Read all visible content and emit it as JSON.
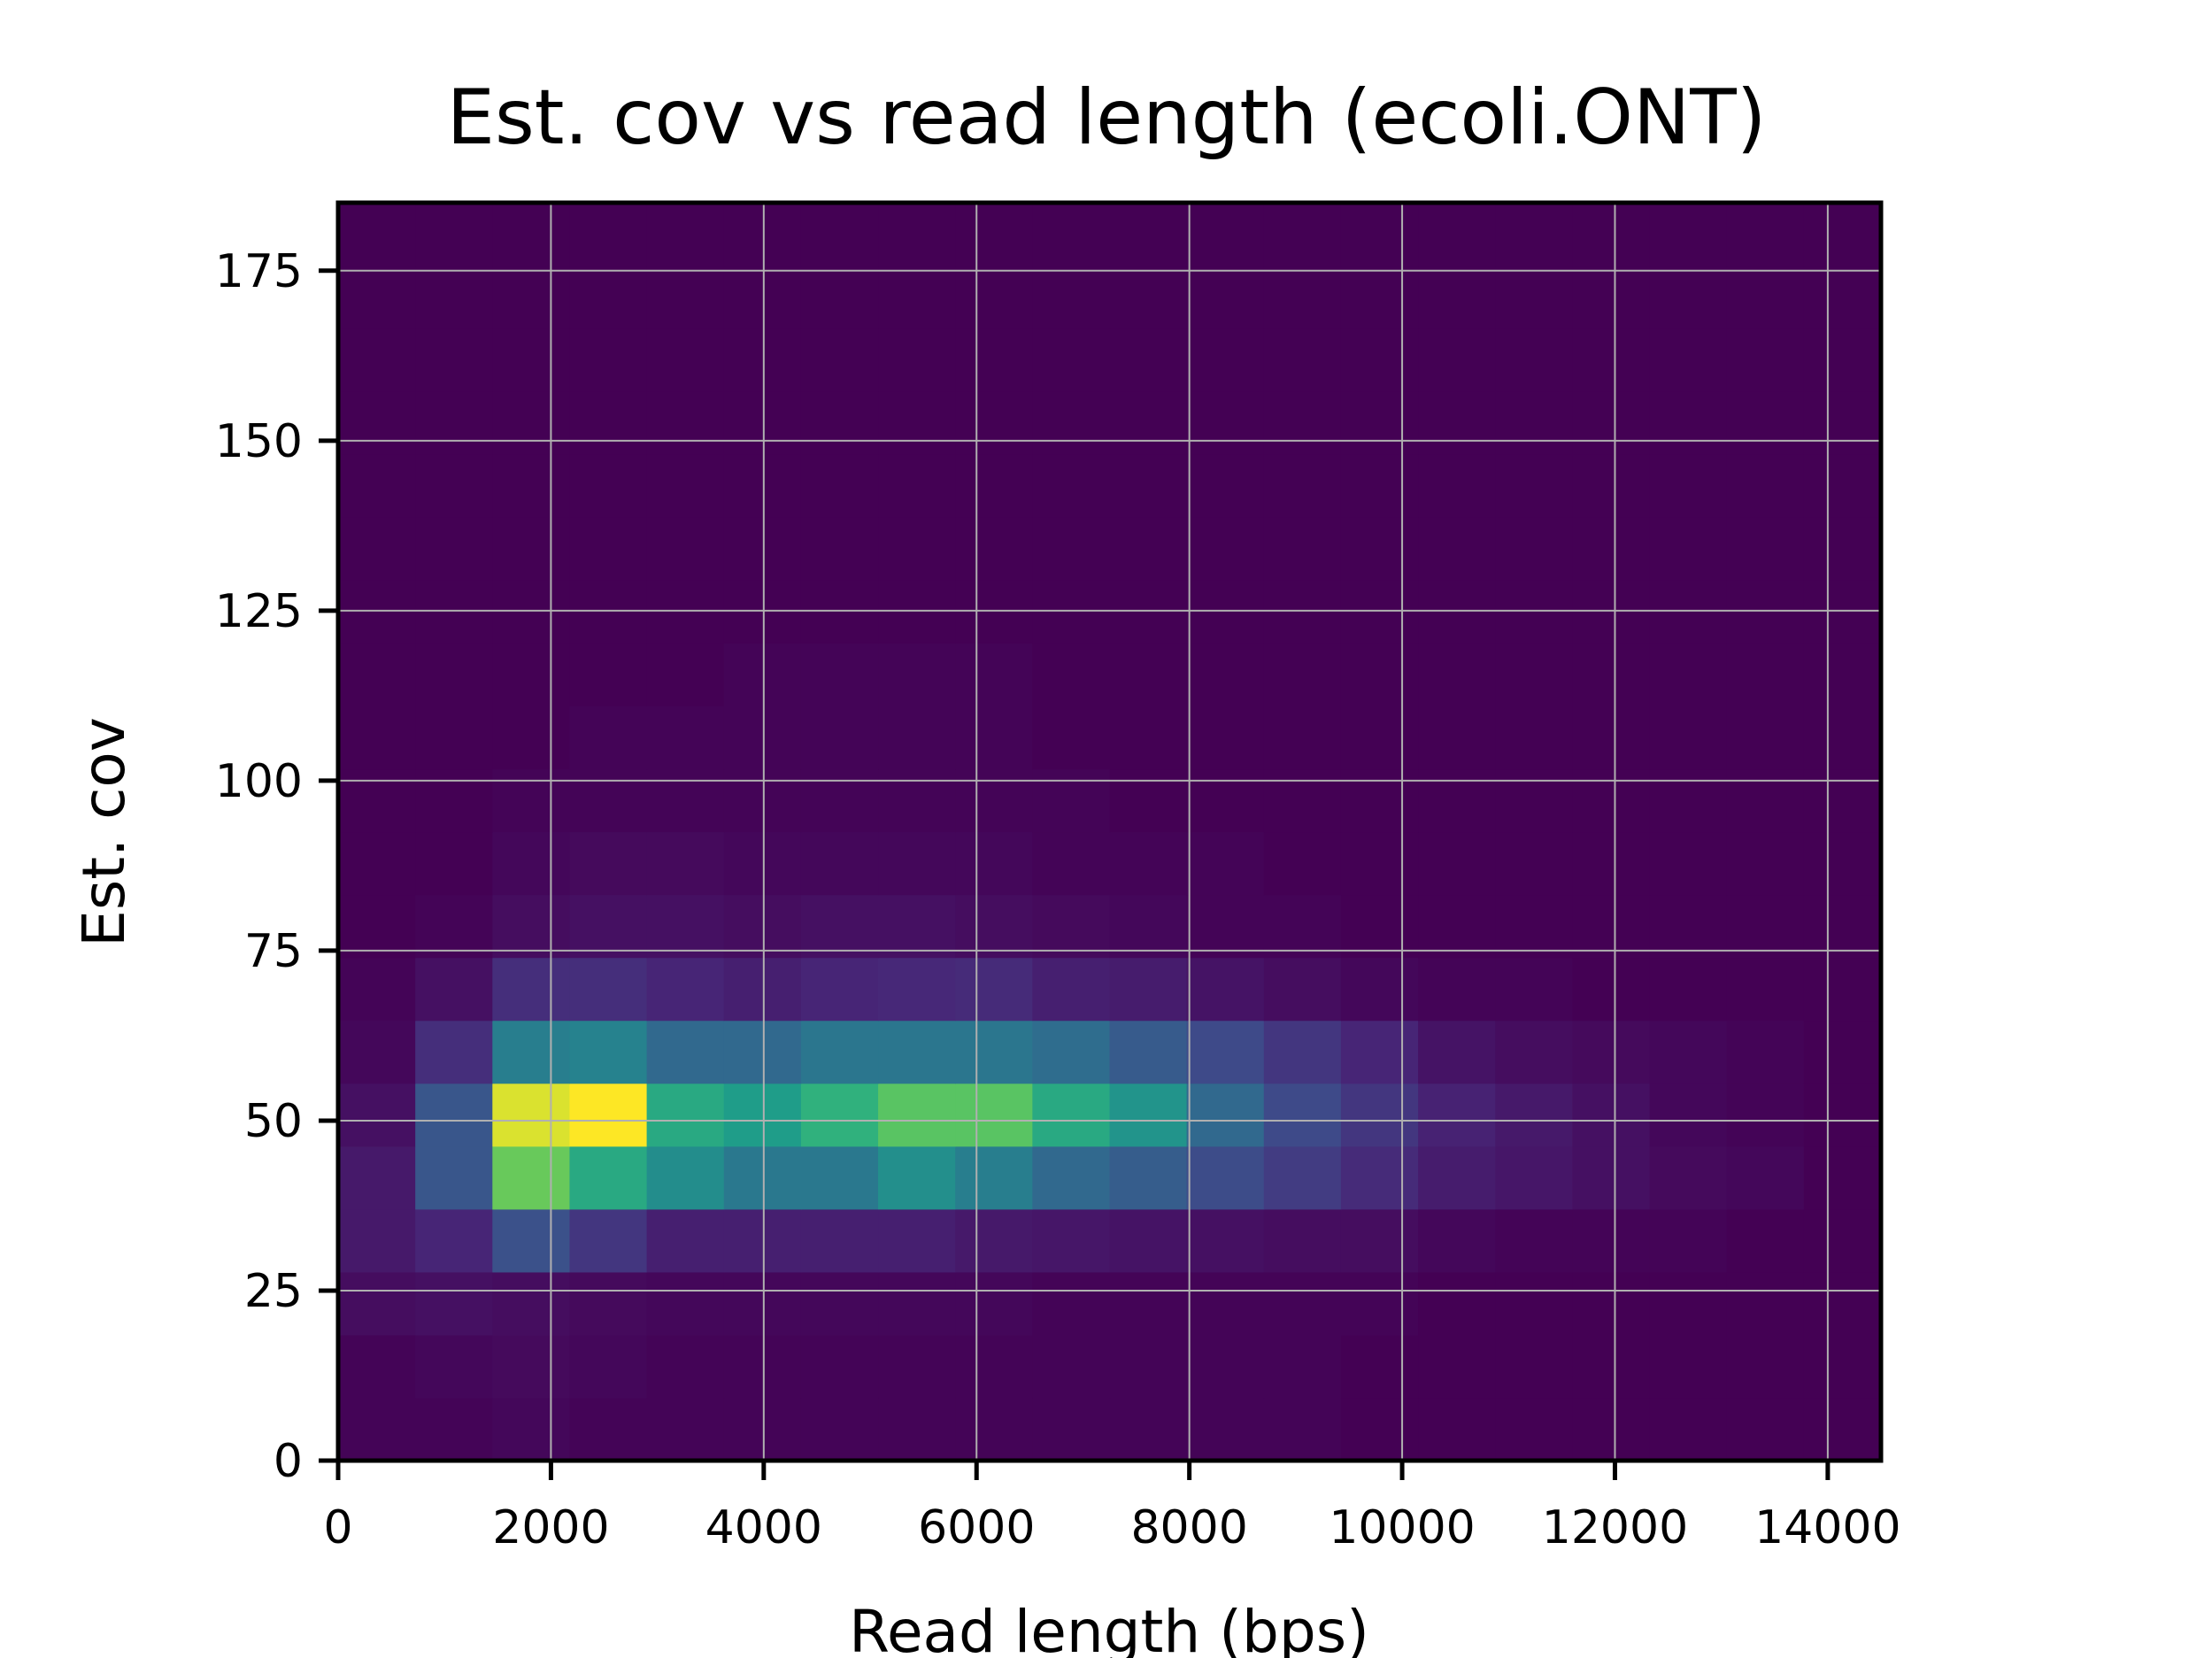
{
  "chart_data": {
    "type": "heatmap",
    "title": "Est. cov vs read length (ecoli.ONT)",
    "xlabel": "Read length (bps)",
    "ylabel": "Est. cov",
    "xlim": [
      0,
      14500
    ],
    "ylim": [
      0,
      185
    ],
    "x_ticks": [
      0,
      2000,
      4000,
      6000,
      8000,
      10000,
      12000,
      14000
    ],
    "x_tick_labels": [
      "0",
      "2000",
      "4000",
      "6000",
      "8000",
      "10000",
      "12000",
      "14000"
    ],
    "y_ticks": [
      0,
      25,
      50,
      75,
      100,
      125,
      150,
      175
    ],
    "y_tick_labels": [
      "0",
      "25",
      "50",
      "75",
      "100",
      "125",
      "150",
      "175"
    ],
    "grid": true,
    "colormap": "viridis",
    "x_bin_edges": [
      0,
      725,
      1450,
      2175,
      2900,
      3625,
      4350,
      5075,
      5800,
      6525,
      7250,
      7975,
      8700,
      9425,
      10150,
      10875,
      11600,
      12325,
      13050,
      13775,
      14500
    ],
    "y_bin_edges": [
      0,
      9.25,
      18.5,
      27.75,
      37,
      46.25,
      55.5,
      64.75,
      74,
      83.25,
      92.5,
      101.75,
      111,
      120.25,
      129.5,
      138.75,
      148,
      157.25,
      166.5,
      175.75,
      185
    ],
    "values": [
      [
        0.01,
        0.01,
        0.02,
        0.01,
        0.01,
        0.01,
        0.01,
        0.01,
        0.01,
        0.01,
        0.01,
        0.01,
        0.01,
        0.0,
        0.0,
        0.0,
        0.0,
        0.0,
        0.0,
        0.0
      ],
      [
        0.01,
        0.02,
        0.03,
        0.02,
        0.01,
        0.01,
        0.01,
        0.01,
        0.01,
        0.01,
        0.01,
        0.01,
        0.01,
        0.0,
        0.0,
        0.0,
        0.0,
        0.0,
        0.0,
        0.0
      ],
      [
        0.04,
        0.05,
        0.04,
        0.03,
        0.02,
        0.02,
        0.02,
        0.02,
        0.02,
        0.01,
        0.01,
        0.01,
        0.01,
        0.01,
        0.0,
        0.0,
        0.0,
        0.0,
        0.0,
        0.0
      ],
      [
        0.08,
        0.12,
        0.28,
        0.18,
        0.1,
        0.1,
        0.1,
        0.1,
        0.08,
        0.07,
        0.06,
        0.05,
        0.04,
        0.04,
        0.02,
        0.01,
        0.01,
        0.01,
        0.0,
        0.0
      ],
      [
        0.08,
        0.3,
        0.82,
        0.68,
        0.55,
        0.45,
        0.45,
        0.56,
        0.48,
        0.38,
        0.33,
        0.26,
        0.2,
        0.14,
        0.09,
        0.07,
        0.05,
        0.03,
        0.02,
        0.0
      ],
      [
        0.05,
        0.3,
        0.96,
        1.0,
        0.68,
        0.62,
        0.72,
        0.8,
        0.8,
        0.68,
        0.58,
        0.38,
        0.25,
        0.18,
        0.11,
        0.08,
        0.05,
        0.02,
        0.01,
        0.0
      ],
      [
        0.02,
        0.15,
        0.48,
        0.5,
        0.38,
        0.38,
        0.44,
        0.44,
        0.44,
        0.4,
        0.32,
        0.25,
        0.18,
        0.12,
        0.06,
        0.04,
        0.03,
        0.02,
        0.01,
        0.0
      ],
      [
        0.01,
        0.05,
        0.15,
        0.15,
        0.12,
        0.1,
        0.12,
        0.13,
        0.14,
        0.1,
        0.09,
        0.06,
        0.04,
        0.02,
        0.01,
        0.01,
        0.0,
        0.0,
        0.0,
        0.0
      ],
      [
        0.0,
        0.01,
        0.04,
        0.05,
        0.05,
        0.04,
        0.05,
        0.05,
        0.04,
        0.03,
        0.02,
        0.01,
        0.01,
        0.0,
        0.0,
        0.0,
        0.0,
        0.0,
        0.0,
        0.0
      ],
      [
        0.0,
        0.0,
        0.02,
        0.03,
        0.03,
        0.02,
        0.02,
        0.02,
        0.02,
        0.01,
        0.01,
        0.01,
        0.0,
        0.0,
        0.0,
        0.0,
        0.0,
        0.0,
        0.0,
        0.0
      ],
      [
        0.0,
        0.0,
        0.01,
        0.01,
        0.01,
        0.01,
        0.01,
        0.01,
        0.01,
        0.01,
        0.0,
        0.0,
        0.0,
        0.0,
        0.0,
        0.0,
        0.0,
        0.0,
        0.0,
        0.0
      ],
      [
        0.0,
        0.0,
        0.0,
        0.01,
        0.01,
        0.01,
        0.01,
        0.01,
        0.01,
        0.0,
        0.0,
        0.0,
        0.0,
        0.0,
        0.0,
        0.0,
        0.0,
        0.0,
        0.0,
        0.0
      ],
      [
        0.0,
        0.0,
        0.0,
        0.0,
        0.0,
        0.01,
        0.01,
        0.01,
        0.01,
        0.0,
        0.0,
        0.0,
        0.0,
        0.0,
        0.0,
        0.0,
        0.0,
        0.0,
        0.0,
        0.0
      ],
      [
        0.0,
        0.0,
        0.0,
        0.0,
        0.0,
        0.0,
        0.0,
        0.0,
        0.0,
        0.0,
        0.0,
        0.0,
        0.0,
        0.0,
        0.0,
        0.0,
        0.0,
        0.0,
        0.0,
        0.0
      ],
      [
        0.0,
        0.0,
        0.0,
        0.0,
        0.0,
        0.0,
        0.0,
        0.0,
        0.0,
        0.0,
        0.0,
        0.0,
        0.0,
        0.0,
        0.0,
        0.0,
        0.0,
        0.0,
        0.0,
        0.0
      ],
      [
        0.0,
        0.0,
        0.0,
        0.0,
        0.0,
        0.0,
        0.0,
        0.0,
        0.0,
        0.0,
        0.0,
        0.0,
        0.0,
        0.0,
        0.0,
        0.0,
        0.0,
        0.0,
        0.0,
        0.0
      ],
      [
        0.0,
        0.0,
        0.0,
        0.0,
        0.0,
        0.0,
        0.0,
        0.0,
        0.0,
        0.0,
        0.0,
        0.0,
        0.0,
        0.0,
        0.0,
        0.0,
        0.0,
        0.0,
        0.0,
        0.0
      ],
      [
        0.0,
        0.0,
        0.0,
        0.0,
        0.0,
        0.0,
        0.0,
        0.0,
        0.0,
        0.0,
        0.0,
        0.0,
        0.0,
        0.0,
        0.0,
        0.0,
        0.0,
        0.0,
        0.0,
        0.0
      ],
      [
        0.0,
        0.0,
        0.0,
        0.0,
        0.0,
        0.0,
        0.0,
        0.0,
        0.0,
        0.0,
        0.0,
        0.0,
        0.0,
        0.0,
        0.0,
        0.0,
        0.0,
        0.0,
        0.0,
        0.0
      ],
      [
        0.0,
        0.0,
        0.0,
        0.0,
        0.0,
        0.0,
        0.0,
        0.0,
        0.0,
        0.0,
        0.0,
        0.0,
        0.0,
        0.0,
        0.0,
        0.0,
        0.0,
        0.0,
        0.0,
        0.0
      ]
    ]
  }
}
